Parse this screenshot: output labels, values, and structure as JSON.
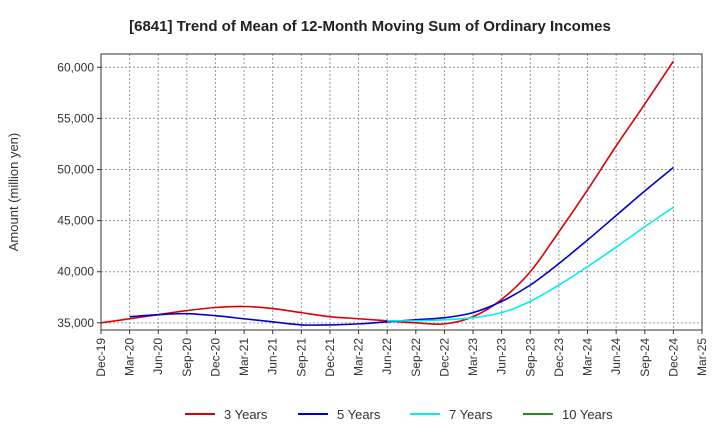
{
  "chart_data": {
    "type": "line",
    "title": "[6841]  Trend of Mean of 12-Month Moving Sum of Ordinary Incomes",
    "xlabel": "",
    "ylabel": "Amount (million yen)",
    "ylim": [
      34300,
      61300
    ],
    "yticks": [
      35000,
      40000,
      45000,
      50000,
      55000,
      60000
    ],
    "ytick_labels": [
      "35,000",
      "40,000",
      "45,000",
      "50,000",
      "55,000",
      "60,000"
    ],
    "grid": true,
    "legend_position": "bottom",
    "categories": [
      "Dec-19",
      "Mar-20",
      "Jun-20",
      "Sep-20",
      "Dec-20",
      "Mar-21",
      "Jun-21",
      "Sep-21",
      "Dec-21",
      "Mar-22",
      "Jun-22",
      "Sep-22",
      "Dec-22",
      "Mar-23",
      "Jun-23",
      "Sep-23",
      "Dec-23",
      "Mar-24",
      "Jun-24",
      "Sep-24",
      "Dec-24",
      "Mar-25"
    ],
    "series": [
      {
        "name": "3 Years",
        "color": "#dd0000",
        "values": [
          35000,
          35400,
          35800,
          36200,
          36500,
          36600,
          36400,
          36000,
          35600,
          35400,
          35200,
          35000,
          34900,
          35600,
          37300,
          40000,
          43900,
          48000,
          52300,
          56400,
          60600,
          null
        ]
      },
      {
        "name": "5 Years",
        "color": "#0000cc",
        "values": [
          null,
          35600,
          35800,
          35900,
          35700,
          35400,
          35100,
          34800,
          34800,
          34900,
          35100,
          35300,
          35500,
          36000,
          37100,
          38700,
          40800,
          43100,
          45500,
          47900,
          50200,
          null
        ]
      },
      {
        "name": "7 Years",
        "color": "#00eeee",
        "values": [
          null,
          null,
          null,
          null,
          null,
          null,
          null,
          null,
          null,
          null,
          35200,
          35200,
          35300,
          35500,
          36000,
          37100,
          38700,
          40500,
          42400,
          44400,
          46300,
          null
        ]
      },
      {
        "name": "10 Years",
        "color": "#228b22",
        "values": [
          null,
          null,
          null,
          null,
          null,
          null,
          null,
          null,
          null,
          null,
          null,
          null,
          null,
          null,
          null,
          null,
          null,
          null,
          null,
          null,
          null,
          null
        ]
      }
    ]
  }
}
